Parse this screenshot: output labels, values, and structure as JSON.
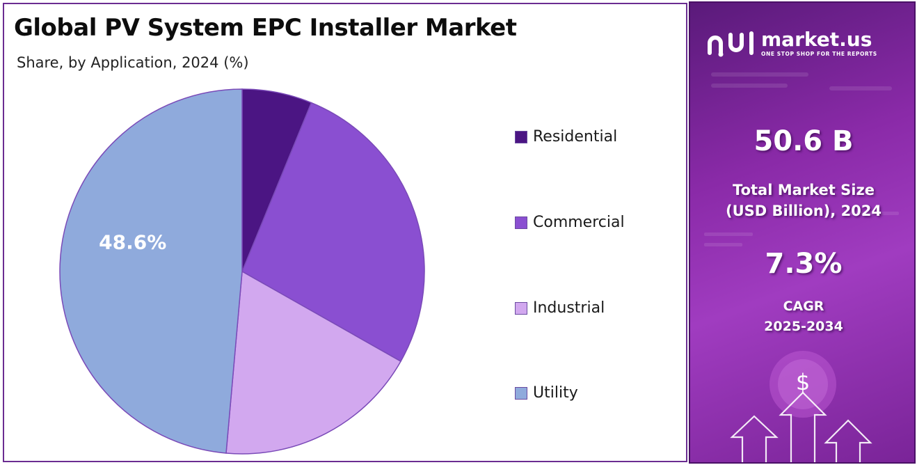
{
  "title": "Global PV System EPC Installer Market",
  "subtitle": "Share, by Application, 2024 (%)",
  "chart_data": {
    "type": "pie",
    "title": "Global PV System EPC Installer Market",
    "subtitle": "Share, by Application, 2024 (%)",
    "categories": [
      "Residential",
      "Commercial",
      "Industrial",
      "Utility"
    ],
    "values": [
      6.2,
      27.0,
      18.2,
      48.6
    ],
    "colors": [
      "#4b1583",
      "#8a4fd1",
      "#d2a8ef",
      "#8faadc"
    ],
    "data_labels": [
      {
        "category": "Utility",
        "text": "48.6%"
      }
    ],
    "legend": "right",
    "start_angle_deg": 0,
    "direction": "clockwise"
  },
  "legend": {
    "items": [
      {
        "label": "Residential",
        "color": "#4b1583"
      },
      {
        "label": "Commercial",
        "color": "#8a4fd1"
      },
      {
        "label": "Industrial",
        "color": "#d2a8ef"
      },
      {
        "label": "Utility",
        "color": "#8faadc"
      }
    ]
  },
  "sidebar": {
    "brand_name": "market.us",
    "brand_tagline": "ONE STOP SHOP FOR THE REPORTS",
    "market_size_value": "50.6 B",
    "market_size_label_line1": "Total Market Size",
    "market_size_label_line2": "(USD Billion), 2024",
    "cagr_value": "7.3%",
    "cagr_label_line1": "CAGR",
    "cagr_label_line2": "2025-2034",
    "dollar_symbol": "$",
    "icons": [
      "market-us-logo-icon",
      "dollar-coin-icon",
      "up-arrow-icon"
    ]
  }
}
